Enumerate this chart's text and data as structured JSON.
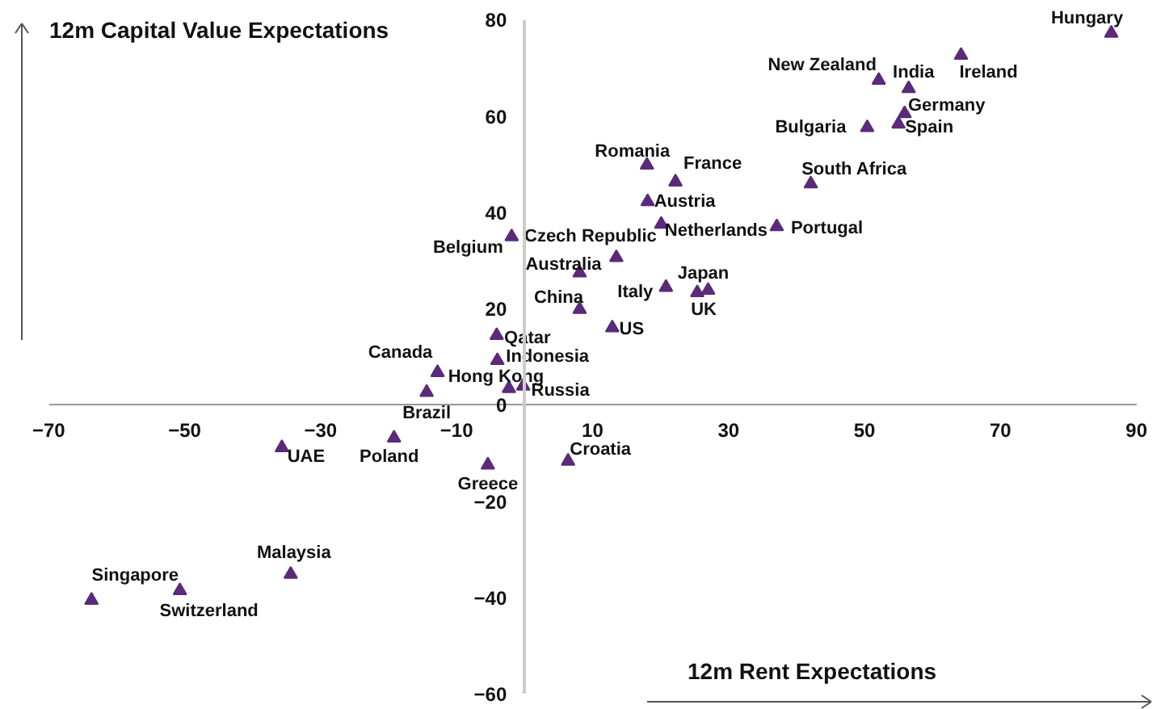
{
  "chart_data": {
    "type": "scatter",
    "xlabel": "12m Rent Expectations",
    "ylabel": "12m Capital Value Expectations",
    "marker": "triangle",
    "grid": false,
    "xlim": [
      -70,
      90
    ],
    "xticks": [
      -70,
      -50,
      -30,
      -10,
      10,
      30,
      50,
      70,
      90
    ],
    "ylim": [
      -60,
      80
    ],
    "yticks": [
      -60,
      -40,
      -20,
      0,
      20,
      40,
      60,
      80
    ],
    "series": [
      {
        "color": "#5b2a7a",
        "x": [
          86.3,
          64.2,
          52.1,
          56.5,
          55.9,
          55.0,
          50.4,
          18.0,
          22.2,
          42.1,
          18.1,
          20.1,
          37.1,
          13.5,
          8.1,
          8.1,
          20.8,
          27.0,
          25.4,
          12.9,
          -1.9,
          -4.1,
          -4.0,
          -12.8,
          -2.3,
          -0.2,
          -14.4,
          -35.7,
          -19.2,
          -5.4,
          -34.4,
          -63.7,
          -50.7,
          6.4
        ],
        "values": [
          77.2,
          72.6,
          67.4,
          65.7,
          60.5,
          58.3,
          57.6,
          49.8,
          46.3,
          45.9,
          42.2,
          37.5,
          37.0,
          30.6,
          27.4,
          19.8,
          24.4,
          23.8,
          23.3,
          16.0,
          34.9,
          14.4,
          9.2,
          6.7,
          3.4,
          3.9,
          2.6,
          -8.9,
          -6.9,
          -12.5,
          -35.2,
          -40.6,
          -38.6,
          -11.7
        ]
      }
    ],
    "annotations": [
      {
        "text": "Hungary",
        "x": 86.3,
        "y": 77.2
      },
      {
        "text": "Ireland",
        "x": 64.2,
        "y": 72.6
      },
      {
        "text": "New Zealand",
        "x": 52.1,
        "y": 67.4
      },
      {
        "text": "India",
        "x": 56.5,
        "y": 65.7
      },
      {
        "text": "Germany",
        "x": 55.9,
        "y": 60.5
      },
      {
        "text": "Spain",
        "x": 55.0,
        "y": 58.3
      },
      {
        "text": "Bulgaria",
        "x": 50.4,
        "y": 57.6
      },
      {
        "text": "Romania",
        "x": 18.0,
        "y": 49.8
      },
      {
        "text": "France",
        "x": 22.2,
        "y": 46.3
      },
      {
        "text": "South Africa",
        "x": 42.1,
        "y": 45.9
      },
      {
        "text": "Austria",
        "x": 18.1,
        "y": 42.2
      },
      {
        "text": "Netherlands",
        "x": 20.1,
        "y": 37.5
      },
      {
        "text": "Portugal",
        "x": 37.1,
        "y": 37.0
      },
      {
        "text": "Czech Republic",
        "x": 13.5,
        "y": 30.6
      },
      {
        "text": "Australia",
        "x": 8.1,
        "y": 27.4
      },
      {
        "text": "China",
        "x": 8.1,
        "y": 19.8
      },
      {
        "text": "Italy",
        "x": 20.8,
        "y": 24.4
      },
      {
        "text": "Japan",
        "x": 27.0,
        "y": 23.8
      },
      {
        "text": "UK",
        "x": 25.4,
        "y": 23.3
      },
      {
        "text": "US",
        "x": 12.9,
        "y": 16.0
      },
      {
        "text": "Belgium",
        "x": -1.9,
        "y": 34.9
      },
      {
        "text": "Qatar",
        "x": -4.1,
        "y": 14.4
      },
      {
        "text": "Indonesia",
        "x": -4.0,
        "y": 9.2
      },
      {
        "text": "Canada",
        "x": -12.8,
        "y": 6.7
      },
      {
        "text": "Hong Kong",
        "x": -2.3,
        "y": 3.4
      },
      {
        "text": "Russia",
        "x": -0.2,
        "y": 3.9
      },
      {
        "text": "Brazil",
        "x": -14.4,
        "y": 2.6
      },
      {
        "text": "UAE",
        "x": -35.7,
        "y": -8.9
      },
      {
        "text": "Poland",
        "x": -19.2,
        "y": -6.9
      },
      {
        "text": "Greece",
        "x": -5.4,
        "y": -12.5
      },
      {
        "text": "Malaysia",
        "x": -34.4,
        "y": -35.2
      },
      {
        "text": "Singapore",
        "x": -63.7,
        "y": -40.6
      },
      {
        "text": "Switzerland",
        "x": -50.7,
        "y": -38.6
      },
      {
        "text": "Croatia",
        "x": 6.4,
        "y": -11.7
      }
    ]
  }
}
